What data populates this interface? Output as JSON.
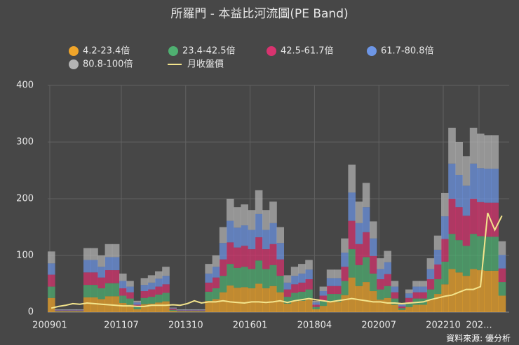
{
  "chart_data": {
    "type": "stacked-step-area",
    "title": "所羅門 - 本益比河流圖(PE Band)",
    "source": "資料來源: 優分析",
    "categories": [
      "200901",
      null,
      null,
      null,
      null,
      null,
      null,
      null,
      null,
      null,
      "201107",
      null,
      null,
      null,
      null,
      null,
      null,
      null,
      null,
      "201310",
      null,
      null,
      null,
      null,
      null,
      null,
      null,
      null,
      "201601",
      null,
      null,
      null,
      null,
      null,
      null,
      null,
      null,
      "201804",
      null,
      null,
      null,
      null,
      null,
      null,
      null,
      null,
      "202007",
      null,
      null,
      null,
      null,
      null,
      null,
      null,
      null,
      "202210",
      null,
      null,
      null,
      null,
      "202...",
      null,
      null,
      null
    ],
    "series": [
      {
        "name": "4.2-23.4倍",
        "color": "#f0a52a",
        "values": [
          25,
          1,
          1,
          1,
          1,
          26,
          26,
          23,
          28,
          28,
          16,
          13,
          5,
          14,
          15,
          17,
          19,
          2,
          1,
          1,
          1,
          1,
          20,
          23,
          35,
          47,
          43,
          44,
          42,
          50,
          42,
          46,
          35,
          15,
          19,
          20,
          22,
          5,
          11,
          18,
          18,
          30,
          61,
          46,
          53,
          37,
          22,
          25,
          13,
          4,
          9,
          13,
          13,
          22,
          32,
          49,
          76,
          70,
          64,
          76,
          74,
          73,
          73,
          29
        ]
      },
      {
        "name": "23.4-42.5倍",
        "color": "#4fb071",
        "values": [
          20,
          1,
          1,
          1,
          1,
          22,
          22,
          19,
          23,
          23,
          13,
          11,
          4,
          11,
          12,
          14,
          15,
          2,
          1,
          1,
          1,
          1,
          16,
          19,
          29,
          38,
          35,
          36,
          34,
          41,
          34,
          37,
          29,
          12,
          15,
          16,
          18,
          4,
          9,
          14,
          14,
          25,
          50,
          37,
          44,
          31,
          18,
          21,
          11,
          3,
          8,
          11,
          11,
          18,
          26,
          40,
          62,
          57,
          53,
          62,
          60,
          60,
          60,
          24
        ]
      },
      {
        "name": "42.5-61.7倍",
        "color": "#d8336f",
        "values": [
          21,
          1,
          1,
          1,
          1,
          22,
          22,
          19,
          23,
          23,
          13,
          11,
          4,
          12,
          13,
          14,
          15,
          2,
          1,
          1,
          1,
          1,
          16,
          19,
          29,
          38,
          36,
          37,
          35,
          41,
          35,
          37,
          29,
          13,
          15,
          16,
          18,
          4,
          9,
          14,
          14,
          25,
          50,
          37,
          44,
          31,
          18,
          21,
          11,
          3,
          8,
          11,
          11,
          18,
          26,
          40,
          62,
          58,
          53,
          62,
          60,
          60,
          60,
          24
        ]
      },
      {
        "name": "61.7-80.8倍",
        "color": "#6d96e6",
        "values": [
          20,
          1,
          1,
          1,
          1,
          22,
          22,
          19,
          23,
          23,
          13,
          10,
          4,
          11,
          12,
          14,
          15,
          1,
          1,
          1,
          1,
          1,
          16,
          19,
          29,
          38,
          35,
          36,
          34,
          41,
          34,
          37,
          29,
          12,
          15,
          16,
          17,
          4,
          8,
          14,
          14,
          25,
          50,
          37,
          44,
          31,
          18,
          21,
          10,
          3,
          8,
          10,
          10,
          18,
          26,
          40,
          62,
          57,
          53,
          62,
          60,
          60,
          60,
          24
        ]
      },
      {
        "name": "80.8-100倍",
        "color": "#b4b4b4",
        "values": [
          21,
          1,
          1,
          1,
          1,
          21,
          21,
          20,
          23,
          23,
          13,
          10,
          3,
          12,
          13,
          13,
          16,
          1,
          1,
          1,
          1,
          1,
          17,
          20,
          28,
          39,
          36,
          37,
          35,
          42,
          35,
          38,
          28,
          13,
          16,
          17,
          17,
          3,
          8,
          15,
          15,
          25,
          49,
          38,
          43,
          30,
          19,
          20,
          10,
          2,
          7,
          10,
          10,
          19,
          25,
          41,
          63,
          58,
          52,
          63,
          61,
          59,
          59,
          24
        ]
      },
      {
        "name": "月收盤價",
        "color": "#f3e48c",
        "kind": "line",
        "values": [
          7,
          10,
          12,
          15,
          14,
          16,
          15,
          14,
          13,
          12,
          11,
          11,
          10,
          10,
          12,
          12,
          12,
          13,
          12,
          15,
          20,
          16,
          18,
          18,
          20,
          18,
          17,
          16,
          18,
          18,
          17,
          18,
          20,
          17,
          20,
          22,
          24,
          22,
          20,
          18,
          20,
          22,
          24,
          22,
          20,
          18,
          18,
          16,
          16,
          15,
          16,
          17,
          18,
          22,
          25,
          28,
          30,
          35,
          40,
          40,
          45,
          175,
          145,
          170
        ]
      }
    ],
    "ylim": [
      0,
      400
    ],
    "yticks": [
      0,
      100,
      200,
      300,
      400
    ],
    "grid": true
  }
}
